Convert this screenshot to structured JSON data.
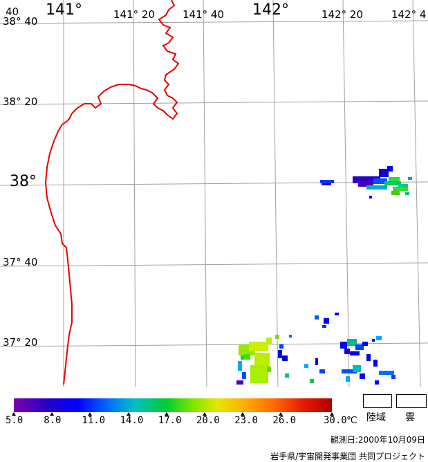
{
  "map": {
    "lon_labels": [
      "141°",
      "141° 20",
      "141° 40",
      "142°",
      "142° 20",
      "142° 4"
    ],
    "lat_labels": [
      "38° 40",
      "38° 20",
      "38°",
      "37° 40",
      "37° 20"
    ],
    "corner_label": "40",
    "colors": {
      "coastline": "#e60000",
      "grid": "#a0a0a0"
    }
  },
  "colorbar": {
    "ticks": [
      "5.0",
      "8.0",
      "11.0",
      "14.0",
      "17.0",
      "20.0",
      "23.0",
      "26.0",
      "30.0"
    ],
    "unit": "℃",
    "min": 5.0,
    "max": 30.0
  },
  "legend": {
    "land": "陸域",
    "cloud": "雲"
  },
  "footer": {
    "observation_date": "観測日:2000年10月09日",
    "credit": "岩手県/宇宙開発事業団 共同プロジェクト"
  }
}
